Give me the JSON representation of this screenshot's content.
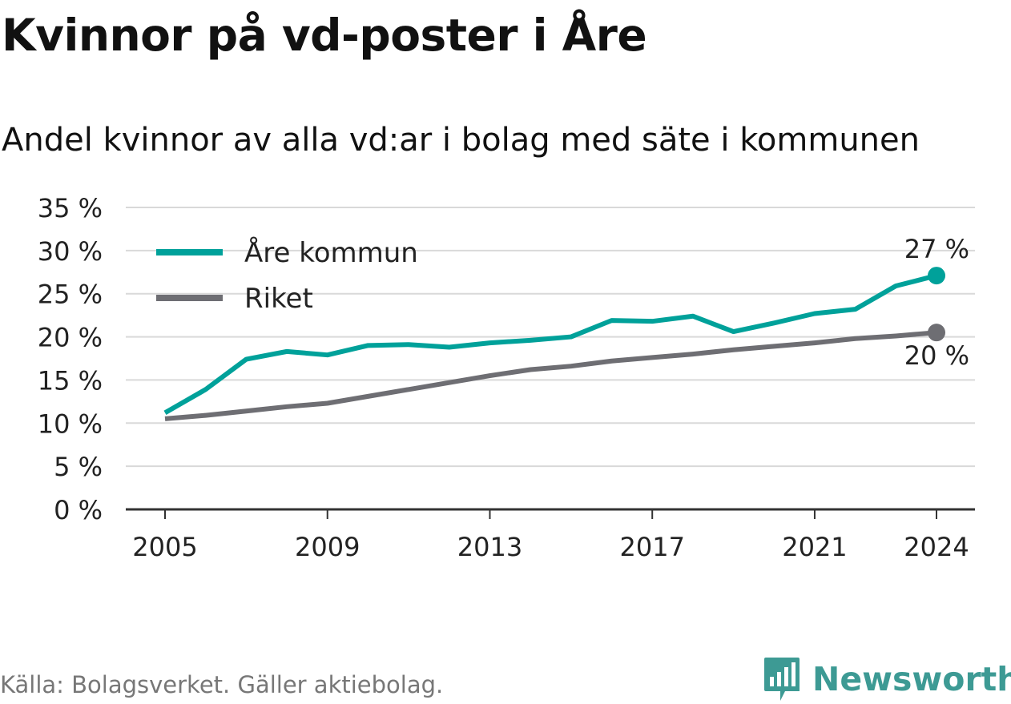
{
  "title": "Kvinnor på vd-poster i Åre",
  "subtitle": "Andel kvinnor av alla vd:ar i bolag med säte i kommunen",
  "source": "Källa: Bolagsverket. Gäller aktiebolag.",
  "brand": {
    "name": "Newsworthy",
    "icon": "newsworthy-logo-icon",
    "color": "#3d9a94"
  },
  "chart_data": {
    "type": "line",
    "x": [
      2005,
      2006,
      2007,
      2008,
      2009,
      2010,
      2011,
      2012,
      2013,
      2014,
      2015,
      2016,
      2017,
      2018,
      2019,
      2020,
      2021,
      2022,
      2023,
      2024
    ],
    "series": [
      {
        "name": "Åre kommun",
        "color": "#00a19a",
        "values": [
          11.2,
          13.9,
          17.4,
          18.3,
          17.9,
          19.0,
          19.1,
          18.8,
          19.3,
          19.6,
          20.0,
          21.9,
          21.8,
          22.4,
          20.6,
          21.6,
          22.7,
          23.2,
          25.9,
          27.1
        ],
        "end_label": "27 %"
      },
      {
        "name": "Riket",
        "color": "#6e6e73",
        "values": [
          10.5,
          10.9,
          11.4,
          11.9,
          12.3,
          13.1,
          13.9,
          14.7,
          15.5,
          16.2,
          16.6,
          17.2,
          17.6,
          18.0,
          18.5,
          18.9,
          19.3,
          19.8,
          20.1,
          20.5
        ],
        "end_label": "20 %"
      }
    ],
    "x_ticks": [
      {
        "value": 2005,
        "label": "2005"
      },
      {
        "value": 2009,
        "label": "2009"
      },
      {
        "value": 2013,
        "label": "2013"
      },
      {
        "value": 2017,
        "label": "2017"
      },
      {
        "value": 2021,
        "label": "2021"
      },
      {
        "value": 2024,
        "label": "2024"
      }
    ],
    "y_ticks": [
      {
        "value": 0,
        "label": "0 %"
      },
      {
        "value": 5,
        "label": "5 %"
      },
      {
        "value": 10,
        "label": "10 %"
      },
      {
        "value": 15,
        "label": "15 %"
      },
      {
        "value": 20,
        "label": "20 %"
      },
      {
        "value": 25,
        "label": "25 %"
      },
      {
        "value": 30,
        "label": "30 %"
      },
      {
        "value": 35,
        "label": "35 %"
      }
    ],
    "xlim": [
      2005,
      2024
    ],
    "ylim": [
      0,
      35
    ],
    "grid": true,
    "legend_position": "top-left"
  }
}
